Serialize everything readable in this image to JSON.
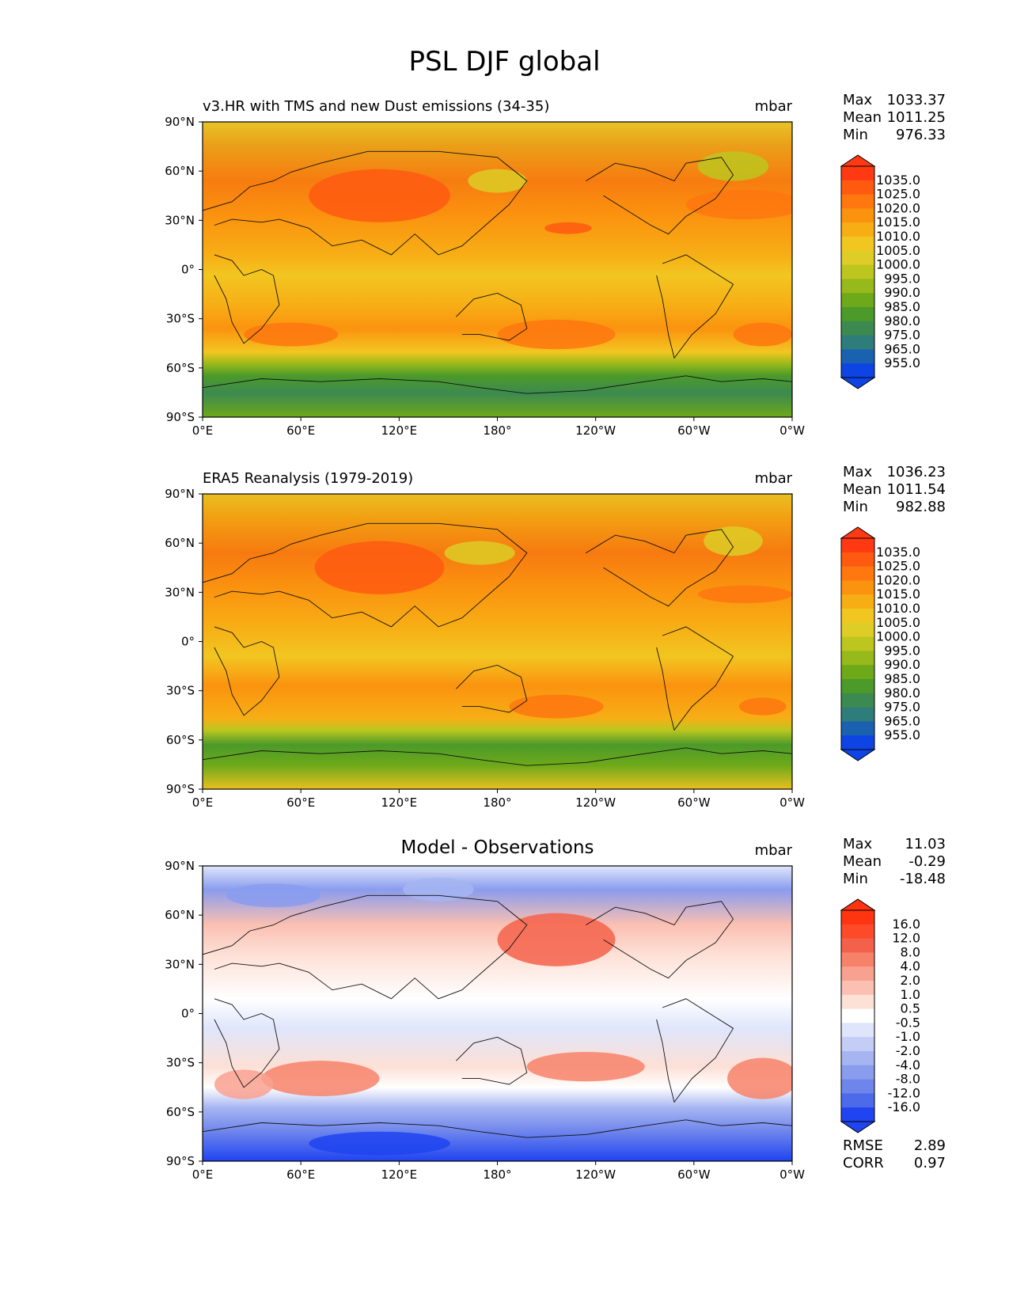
{
  "title": "PSL DJF global",
  "panels": [
    {
      "title": "v3.HR with TMS and new Dust emissions (34-35)",
      "units": "mbar",
      "stats": {
        "max_label": "Max",
        "max": "1033.37",
        "mean_label": "Mean",
        "mean": "1011.25",
        "min_label": "Min",
        "min": "976.33"
      },
      "colorbar": {
        "labels": [
          "1035.0",
          "1025.0",
          "1020.0",
          "1015.0",
          "1010.0",
          "1005.0",
          "1000.0",
          "995.0",
          "990.0",
          "985.0",
          "980.0",
          "975.0",
          "965.0",
          "955.0"
        ],
        "colors": [
          "#ff3a13",
          "#ff5a10",
          "#fe770f",
          "#fb930f",
          "#f7ae15",
          "#f2c621",
          "#ddcd26",
          "#bdc61f",
          "#98b91b",
          "#6ea91a",
          "#4c9a2a",
          "#3c8a4f",
          "#2e7d7a",
          "#1a61b0",
          "#0d44e3"
        ]
      }
    },
    {
      "title": "ERA5 Reanalysis (1979-2019)",
      "units": "mbar",
      "stats": {
        "max_label": "Max",
        "max": "1036.23",
        "mean_label": "Mean",
        "mean": "1011.54",
        "min_label": "Min",
        "min": "982.88"
      },
      "colorbar": {
        "labels": [
          "1035.0",
          "1025.0",
          "1020.0",
          "1015.0",
          "1010.0",
          "1005.0",
          "1000.0",
          "995.0",
          "990.0",
          "985.0",
          "980.0",
          "975.0",
          "965.0",
          "955.0"
        ],
        "colors": [
          "#ff3a13",
          "#ff5a10",
          "#fe770f",
          "#fb930f",
          "#f7ae15",
          "#f2c621",
          "#ddcd26",
          "#bdc61f",
          "#98b91b",
          "#6ea91a",
          "#4c9a2a",
          "#3c8a4f",
          "#2e7d7a",
          "#1a61b0",
          "#0d44e3"
        ]
      }
    },
    {
      "title": "Model - Observations",
      "units": "mbar",
      "stats": {
        "max_label": "Max",
        "max": "11.03",
        "mean_label": "Mean",
        "mean": "-0.29",
        "min_label": "Min",
        "min": "-18.48"
      },
      "colorbar": {
        "labels": [
          "16.0",
          "12.0",
          "8.0",
          "4.0",
          "2.0",
          "1.0",
          "0.5",
          "-0.5",
          "-1.0",
          "-2.0",
          "-4.0",
          "-8.0",
          "-12.0",
          "-16.0"
        ],
        "colors": [
          "#ff3410",
          "#ff4a2a",
          "#f4614a",
          "#f7826a",
          "#f9a190",
          "#fbc0b2",
          "#fde0d6",
          "#ffffff",
          "#dfe6fb",
          "#c3cdf6",
          "#a6b5f1",
          "#8a9cee",
          "#6e85ec",
          "#4d6aeb",
          "#1f44f0"
        ]
      }
    }
  ],
  "axes": {
    "lat_labels": [
      "90°N",
      "60°N",
      "30°N",
      "0°",
      "30°S",
      "60°S",
      "90°S"
    ],
    "lon_labels": [
      "0°E",
      "60°E",
      "120°E",
      "180°",
      "120°W",
      "60°W",
      "0°W"
    ]
  },
  "footer": {
    "rmse_label": "RMSE",
    "rmse": "2.89",
    "corr_label": "CORR",
    "corr": "0.97"
  }
}
